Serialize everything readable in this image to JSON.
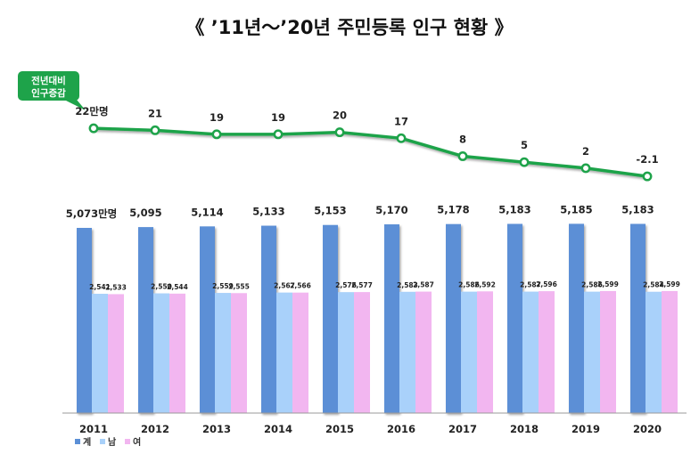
{
  "chart_data": {
    "type": "bar",
    "title": "《 ’11년～’20년 주민등록 인구 현황 》",
    "categories": [
      "2011",
      "2012",
      "2013",
      "2014",
      "2015",
      "2016",
      "2017",
      "2018",
      "2019",
      "2020"
    ],
    "series": [
      {
        "name": "계",
        "color": "#5b8fd6",
        "values": [
          5073,
          5095,
          5114,
          5133,
          5153,
          5170,
          5178,
          5183,
          5185,
          5183
        ],
        "labels": [
          "5,073만명",
          "5,095",
          "5,114",
          "5,133",
          "5,153",
          "5,170",
          "5,178",
          "5,183",
          "5,185",
          "5,183"
        ]
      },
      {
        "name": "남",
        "color": "#a9d1fa",
        "values": [
          2541,
          2550,
          2559,
          2567,
          2576,
          2583,
          2586,
          2587,
          2586,
          2584
        ],
        "labels": [
          "2,541",
          "2,550",
          "2,559",
          "2,567",
          "2,576",
          "2,583",
          "2,586",
          "2,587",
          "2,586",
          "2,584"
        ]
      },
      {
        "name": "여",
        "color": "#f2b6f0",
        "values": [
          2533,
          2544,
          2555,
          2566,
          2577,
          2587,
          2592,
          2596,
          2599,
          2599
        ],
        "labels": [
          "2,533",
          "2,544",
          "2,555",
          "2,566",
          "2,577",
          "2,587",
          "2,592",
          "2,596",
          "2,599",
          "2,599"
        ]
      }
    ],
    "line": {
      "name": "전년대비 인구증감",
      "color": "#1ea34a",
      "values": [
        22,
        21,
        19,
        19,
        20,
        17,
        8,
        5,
        2,
        -2.1
      ],
      "labels": [
        "22만명",
        "21",
        "19",
        "19",
        "20",
        "17",
        "8",
        "5",
        "2",
        "-2.1"
      ]
    },
    "badge": {
      "line1": "전년대비",
      "line2": "인구증감"
    },
    "legend": [
      "계",
      "남",
      "여"
    ]
  }
}
